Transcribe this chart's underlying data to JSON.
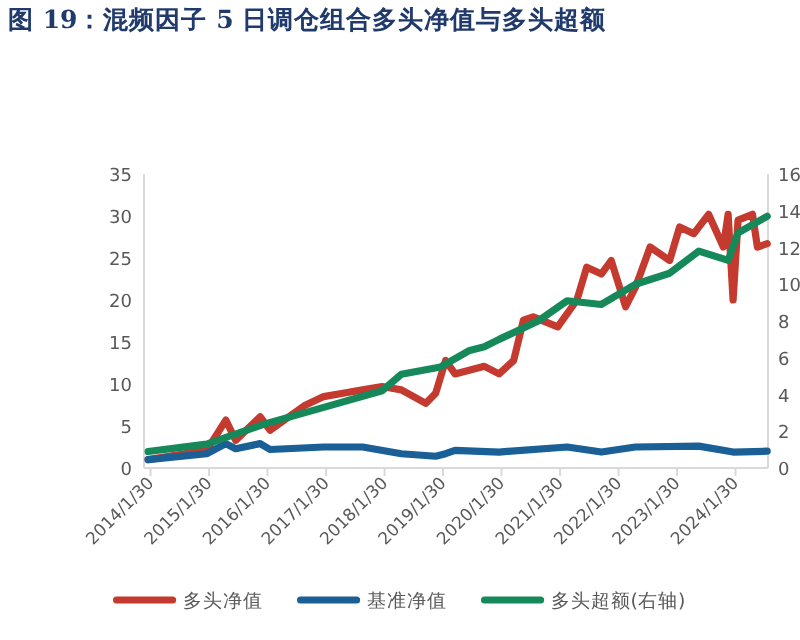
{
  "chart_data": {
    "type": "line",
    "title": "图 19：混频因子 5 日调仓组合多头净值与多头超额",
    "series": [
      {
        "name": "多头净值",
        "color": "#c43a2f",
        "axis": "y",
        "x": [
          "2014-01",
          "2015-01",
          "2015-05",
          "2015-07",
          "2015-12",
          "2016-02",
          "2016-09",
          "2017-01",
          "2017-05",
          "2017-09",
          "2018-01",
          "2018-05",
          "2018-10",
          "2018-12",
          "2019-02",
          "2019-04",
          "2019-10",
          "2020-01",
          "2020-04",
          "2020-06",
          "2020-08",
          "2021-01",
          "2021-05",
          "2021-07",
          "2021-10",
          "2021-12",
          "2022-03",
          "2022-05",
          "2022-08",
          "2022-12",
          "2023-02",
          "2023-05",
          "2023-08",
          "2023-11",
          "2023-12",
          "2024-01",
          "2024-02",
          "2024-05",
          "2024-06",
          "2024-08"
        ],
        "values": [
          1.0,
          2.1,
          5.7,
          3.3,
          6.1,
          4.5,
          7.4,
          8.5,
          8.9,
          9.3,
          9.7,
          9.3,
          7.7,
          8.9,
          12.8,
          11.2,
          12.1,
          11.2,
          12.8,
          17.6,
          18.0,
          16.8,
          20.0,
          23.9,
          23.1,
          24.7,
          19.2,
          21.5,
          26.3,
          24.7,
          28.7,
          27.9,
          30.2,
          26.3,
          30.2,
          20.0,
          29.5,
          30.2,
          26.3,
          26.7
        ]
      },
      {
        "name": "基准净值",
        "color": "#1a5f95",
        "axis": "y",
        "x": [
          "2014-01",
          "2015-01",
          "2015-05",
          "2015-07",
          "2015-12",
          "2016-02",
          "2017-01",
          "2017-09",
          "2018-05",
          "2018-12",
          "2019-02",
          "2019-04",
          "2020-01",
          "2021-03",
          "2021-10",
          "2022-05",
          "2023-06",
          "2024-01",
          "2024-08"
        ],
        "values": [
          1.0,
          1.7,
          2.9,
          2.3,
          2.9,
          2.2,
          2.5,
          2.5,
          1.7,
          1.4,
          1.7,
          2.1,
          1.9,
          2.5,
          1.9,
          2.5,
          2.6,
          1.9,
          2.0
        ]
      },
      {
        "name": "多头超额(右轴)",
        "color": "#16895a",
        "axis": "y2",
        "x": [
          "2014-01",
          "2015-01",
          "2016-01",
          "2017-01",
          "2018-01",
          "2018-05",
          "2019-01",
          "2019-07",
          "2019-10",
          "2020-01",
          "2020-09",
          "2021-03",
          "2021-10",
          "2022-05",
          "2022-12",
          "2023-06",
          "2023-12",
          "2024-02",
          "2024-08"
        ],
        "values": [
          0.9,
          1.3,
          2.4,
          3.3,
          4.2,
          5.1,
          5.5,
          6.4,
          6.6,
          7.0,
          8.0,
          9.1,
          8.9,
          10.0,
          10.6,
          11.8,
          11.3,
          12.8,
          13.7
        ]
      }
    ],
    "xlim": [
      "2013-12-20",
      "2024-08-20"
    ],
    "xticks": [
      {
        "value": "2014-01-30",
        "label": "2014/1/30"
      },
      {
        "value": "2015-01-30",
        "label": "2015/1/30"
      },
      {
        "value": "2016-01-30",
        "label": "2016/1/30"
      },
      {
        "value": "2017-01-30",
        "label": "2017/1/30"
      },
      {
        "value": "2018-01-30",
        "label": "2018/1/30"
      },
      {
        "value": "2019-01-30",
        "label": "2019/1/30"
      },
      {
        "value": "2020-01-30",
        "label": "2020/1/30"
      },
      {
        "value": "2021-01-30",
        "label": "2021/1/30"
      },
      {
        "value": "2022-01-30",
        "label": "2022/1/30"
      },
      {
        "value": "2023-01-30",
        "label": "2023/1/30"
      },
      {
        "value": "2024-01-30",
        "label": "2024/1/30"
      }
    ],
    "ylim": [
      0,
      35
    ],
    "yticks": [
      0,
      5,
      10,
      15,
      20,
      25,
      30,
      35
    ],
    "y2lim": [
      0,
      16
    ],
    "y2ticks": [
      0,
      2,
      4,
      6,
      8,
      10,
      12,
      14,
      16
    ],
    "legend": "bottom"
  }
}
